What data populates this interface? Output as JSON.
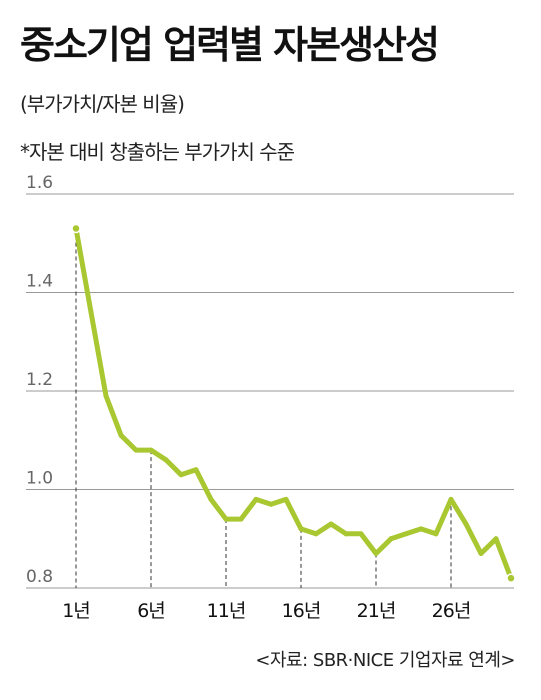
{
  "header": {
    "title": "중소기업 업력별 자본생산성",
    "subtitle": "(부가가치/자본 비율)",
    "note": "*자본 대비 창출하는 부가가치 수준"
  },
  "source": "<자료: SBR·NICE 기업자료 연계>",
  "chart_data": {
    "type": "line",
    "title": "중소기업 업력별 자본생산성",
    "subtitle": "(부가가치/자본 비율)",
    "ylim": [
      0.8,
      1.6
    ],
    "yticks": [
      "0.8",
      "1.0",
      "1.2",
      "1.4",
      "1.6"
    ],
    "grid": true,
    "line_color": "#a9c730",
    "x": [
      1,
      2,
      3,
      4,
      5,
      6,
      7,
      8,
      9,
      10,
      11,
      12,
      13,
      14,
      15,
      16,
      17,
      18,
      19,
      20,
      21,
      22,
      23,
      24,
      25,
      26,
      27,
      28,
      29,
      30
    ],
    "xtick_labels": [
      {
        "x": 1,
        "label": "1년"
      },
      {
        "x": 6,
        "label": "6년"
      },
      {
        "x": 11,
        "label": "11년"
      },
      {
        "x": 16,
        "label": "16년"
      },
      {
        "x": 21,
        "label": "21년"
      },
      {
        "x": 26,
        "label": "26년"
      }
    ],
    "series": [
      {
        "values": [
          1.53,
          1.36,
          1.19,
          1.11,
          1.08,
          1.08,
          1.06,
          1.03,
          1.04,
          0.98,
          0.94,
          0.94,
          0.98,
          0.97,
          0.98,
          0.92,
          0.91,
          0.93,
          0.91,
          0.91,
          0.87,
          0.9,
          0.91,
          0.92,
          0.91,
          0.98,
          0.93,
          0.87,
          0.9,
          0.82
        ]
      }
    ]
  }
}
